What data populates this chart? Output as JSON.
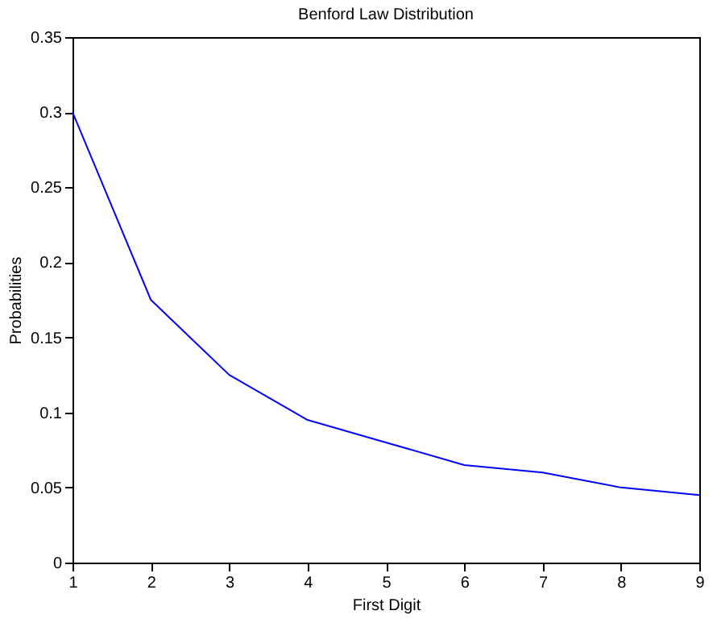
{
  "chart_data": {
    "type": "line",
    "title": "Benford Law Distribution",
    "xlabel": "First Digit",
    "ylabel": "Probabilities",
    "x": [
      1,
      2,
      3,
      4,
      5,
      6,
      7,
      8,
      9
    ],
    "series": [
      {
        "color": "#0000ff",
        "values": [
          0.3,
          0.175,
          0.125,
          0.095,
          0.08,
          0.065,
          0.06,
          0.05,
          0.045
        ]
      }
    ],
    "xlim": [
      1,
      9
    ],
    "xticks": [
      1,
      2,
      3,
      4,
      5,
      6,
      7,
      8,
      9
    ],
    "ylim": [
      0,
      0.35
    ],
    "yticks": [
      0,
      0.05,
      0.1,
      0.15,
      0.2,
      0.25,
      0.3,
      0.35
    ],
    "grid": false,
    "legend": false,
    "marker": "none",
    "line_style": "solid"
  }
}
